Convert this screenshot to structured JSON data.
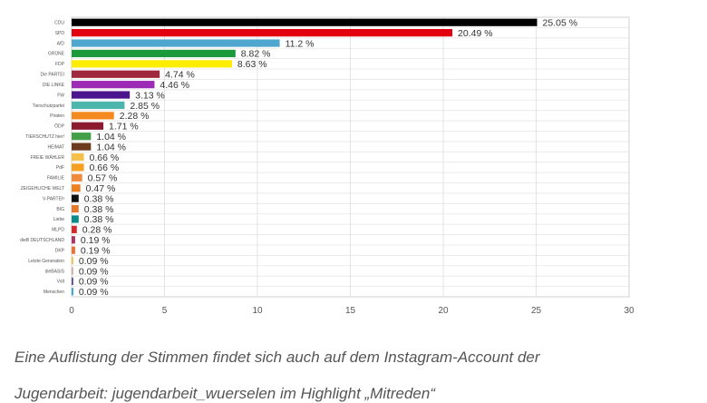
{
  "chart_data": {
    "type": "bar",
    "orientation": "horizontal",
    "categories": [
      "CDU",
      "SPD",
      "AfD",
      "GRÜNE",
      "FDP",
      "Die PARTEI",
      "DIE LINKE",
      "FW",
      "Tierschutzpartei",
      "Piraten",
      "ÖDP",
      "TIERSCHUTZ hier!",
      "HEIMAT",
      "FREIE WÄHLER",
      "PdF",
      "FAMILIE",
      "ZEIGEHLICHE WELT",
      "V-PARTEI³",
      "BIG",
      "Liebe",
      "MLPD",
      "dieB DEUTSCHLAND",
      "DKP",
      "Letzte Generation",
      "dieBASIS",
      "Volt",
      "Menschen"
    ],
    "values": [
      25.05,
      20.49,
      11.2,
      8.82,
      8.63,
      4.74,
      4.46,
      3.13,
      2.85,
      2.28,
      1.71,
      1.04,
      1.04,
      0.66,
      0.66,
      0.57,
      0.47,
      0.38,
      0.38,
      0.38,
      0.28,
      0.19,
      0.19,
      0.09,
      0.09,
      0.09,
      0.09
    ],
    "value_labels": [
      "25.05 %",
      "20.49 %",
      "11.2 %",
      "8.82 %",
      "8.63 %",
      "4.74 %",
      "4.46 %",
      "3.13 %",
      "2.85 %",
      "2.28 %",
      "1.71 %",
      "1.04 %",
      "1.04 %",
      "0.66 %",
      "0.66 %",
      "0.57 %",
      "0.47 %",
      "0.38 %",
      "0.38 %",
      "0.38 %",
      "0.28 %",
      "0.19 %",
      "0.19 %",
      "0.09 %",
      "0.09 %",
      "0.09 %",
      "0.09 %"
    ],
    "colors": [
      "#000000",
      "#e3000f",
      "#4fa6cf",
      "#1a9a3a",
      "#ffed00",
      "#a0283c",
      "#9d2ab5",
      "#4a148c",
      "#4db6ac",
      "#f48a1f",
      "#8b1a2e",
      "#43a047",
      "#6d3b1e",
      "#f5c04a",
      "#f5a020",
      "#f08a3c",
      "#ee8020",
      "#111111",
      "#e97728",
      "#0b8a8a",
      "#d8262b",
      "#b03060",
      "#f07030",
      "#f5c04a",
      "#d0b0a0",
      "#5d4aa0",
      "#29a4d8"
    ],
    "x_ticks": [
      "0",
      "5",
      "10",
      "15",
      "20",
      "25",
      "30"
    ],
    "xlim": [
      0,
      30
    ],
    "grid": true
  },
  "caption": {
    "line1": "Eine Auflistung der Stimmen findet sich auch auf dem Instagram-Account der",
    "line2": "Jugendarbeit: jugendarbeit_wuerselen im Highlight „Mitreden“"
  }
}
